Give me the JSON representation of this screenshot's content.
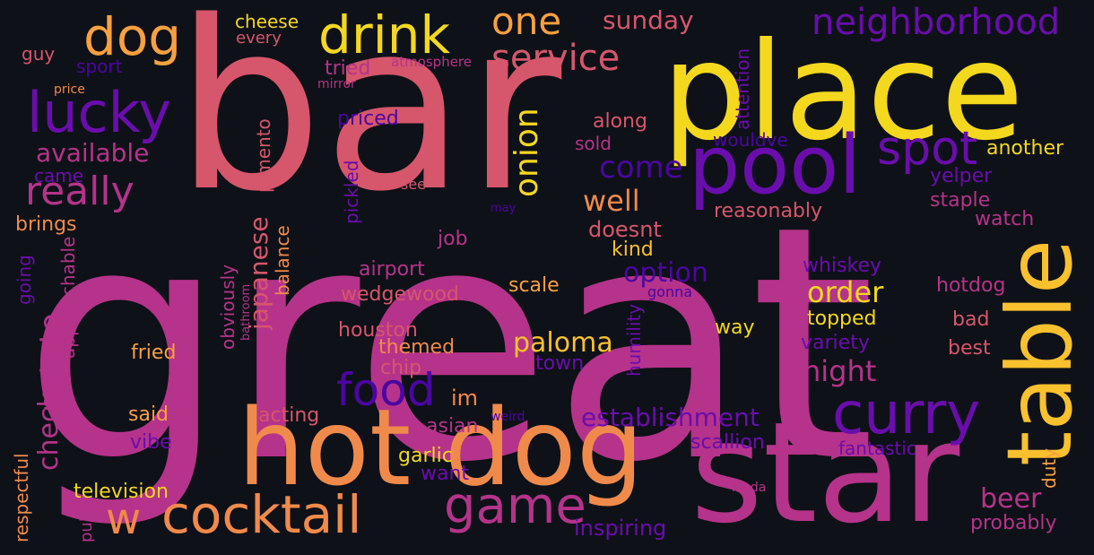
{
  "colors": {
    "background": "#0e1117",
    "pink": "#d6566c",
    "magenta": "#b5338a",
    "purple": "#6a0dad",
    "violet": "#4b06a2",
    "yellow": "#f4d81e",
    "orange": "#f9a03f",
    "salmon": "#e8825a"
  },
  "words": [
    {
      "text": "great",
      "color": "#b5338a"
    },
    {
      "text": "bar",
      "color": "#d6566c"
    },
    {
      "text": "place",
      "color": "#f4d81e"
    },
    {
      "text": "star",
      "color": "#b5338a"
    },
    {
      "text": "hot dog",
      "color": "#f08a4b"
    },
    {
      "text": "table",
      "color": "#f9c12e"
    },
    {
      "text": "pool",
      "color": "#6a0dad"
    },
    {
      "text": "curry",
      "color": "#6a0dad"
    },
    {
      "text": "drink",
      "color": "#f4d81e"
    },
    {
      "text": "dog",
      "color": "#f9a03f"
    },
    {
      "text": "lucky",
      "color": "#6a0dad"
    },
    {
      "text": "cocktail",
      "color": "#f08a4b"
    },
    {
      "text": "game",
      "color": "#b5338a"
    },
    {
      "text": "food",
      "color": "#4b06a2"
    },
    {
      "text": "neighborhood",
      "color": "#6a0dad"
    },
    {
      "text": "one",
      "color": "#f9a03f"
    },
    {
      "text": "service",
      "color": "#d6566c"
    },
    {
      "text": "really",
      "color": "#b5338a"
    },
    {
      "text": "spot",
      "color": "#6a0dad"
    },
    {
      "text": "w",
      "color": "#f08a4b"
    },
    {
      "text": "onion",
      "color": "#f4d81e"
    },
    {
      "text": "potato",
      "color": "#b5338a"
    },
    {
      "text": "japanese",
      "color": "#d6566c"
    },
    {
      "text": "paloma",
      "color": "#f9c12e"
    },
    {
      "text": "establishment",
      "color": "#6a0dad"
    },
    {
      "text": "come",
      "color": "#4b06a2"
    },
    {
      "text": "order",
      "color": "#f4d81e"
    },
    {
      "text": "night",
      "color": "#b5338a"
    },
    {
      "text": "option",
      "color": "#4b06a2"
    },
    {
      "text": "well",
      "color": "#f08a4b"
    },
    {
      "text": "beer",
      "color": "#b5338a"
    },
    {
      "text": "sunday",
      "color": "#d6566c"
    },
    {
      "text": "available",
      "color": "#b5338a"
    },
    {
      "text": "check",
      "color": "#b5338a"
    },
    {
      "text": "cheese",
      "color": "#f4d81e"
    },
    {
      "text": "every",
      "color": "#d6566c"
    },
    {
      "text": "tried",
      "color": "#b5338a"
    },
    {
      "text": "atmosphere",
      "color": "#b5338a"
    },
    {
      "text": "mirror",
      "color": "#b5338a"
    },
    {
      "text": "sport",
      "color": "#4b06a2"
    },
    {
      "text": "guy",
      "color": "#d6566c"
    },
    {
      "text": "price",
      "color": "#f08a4b"
    },
    {
      "text": "priced",
      "color": "#4b06a2"
    },
    {
      "text": "pimento",
      "color": "#d6566c"
    },
    {
      "text": "pickled",
      "color": "#6a0dad"
    },
    {
      "text": "along",
      "color": "#d6566c"
    },
    {
      "text": "sold",
      "color": "#b5338a"
    },
    {
      "text": "attention",
      "color": "#6a0dad"
    },
    {
      "text": "wouldve",
      "color": "#4b06a2"
    },
    {
      "text": "another",
      "color": "#f4d81e"
    },
    {
      "text": "yelper",
      "color": "#6a0dad"
    },
    {
      "text": "staple",
      "color": "#b5338a"
    },
    {
      "text": "reasonably",
      "color": "#d6566c"
    },
    {
      "text": "watch",
      "color": "#b5338a"
    },
    {
      "text": "came",
      "color": "#6a0dad"
    },
    {
      "text": "see",
      "color": "#d6566c"
    },
    {
      "text": "may",
      "color": "#4b06a2"
    },
    {
      "text": "brings",
      "color": "#f08a4b"
    },
    {
      "text": "doesnt",
      "color": "#d6566c"
    },
    {
      "text": "job",
      "color": "#b5338a"
    },
    {
      "text": "kind",
      "color": "#f9c12e"
    },
    {
      "text": "whiskey",
      "color": "#6a0dad"
    },
    {
      "text": "going",
      "color": "#6a0dad"
    },
    {
      "text": "approachable",
      "color": "#b5338a"
    },
    {
      "text": "airport",
      "color": "#b5338a"
    },
    {
      "text": "obviously",
      "color": "#b5338a"
    },
    {
      "text": "balance",
      "color": "#f08a4b"
    },
    {
      "text": "wedgewood",
      "color": "#d6566c"
    },
    {
      "text": "scale",
      "color": "#f9a03f"
    },
    {
      "text": "gonna",
      "color": "#4b06a2"
    },
    {
      "text": "hotdog",
      "color": "#b5338a"
    },
    {
      "text": "topped",
      "color": "#f4d81e"
    },
    {
      "text": "bad",
      "color": "#d6566c"
    },
    {
      "text": "bathroom",
      "color": "#b5338a"
    },
    {
      "text": "houston",
      "color": "#d6566c"
    },
    {
      "text": "themed",
      "color": "#f08a4b"
    },
    {
      "text": "humility",
      "color": "#6a0dad"
    },
    {
      "text": "way",
      "color": "#f4d81e"
    },
    {
      "text": "variety",
      "color": "#6a0dad"
    },
    {
      "text": "best",
      "color": "#d6566c"
    },
    {
      "text": "fried",
      "color": "#f9a03f"
    },
    {
      "text": "chip",
      "color": "#d6566c"
    },
    {
      "text": "town",
      "color": "#6a0dad"
    },
    {
      "text": "im",
      "color": "#f08a4b"
    },
    {
      "text": "said",
      "color": "#f9a03f"
    },
    {
      "text": "acting",
      "color": "#d6566c"
    },
    {
      "text": "weird",
      "color": "#4b06a2"
    },
    {
      "text": "asian",
      "color": "#b5338a"
    },
    {
      "text": "scallion",
      "color": "#6a0dad"
    },
    {
      "text": "duty",
      "color": "#f9a03f"
    },
    {
      "text": "fantastic",
      "color": "#6a0dad"
    },
    {
      "text": "vibe",
      "color": "#6a0dad"
    },
    {
      "text": "garlic",
      "color": "#f4d81e"
    },
    {
      "text": "want",
      "color": "#6a0dad"
    },
    {
      "text": "respectful",
      "color": "#f08a4b"
    },
    {
      "text": "television",
      "color": "#f4d81e"
    },
    {
      "text": "pub",
      "color": "#b5338a"
    },
    {
      "text": "inspiring",
      "color": "#6a0dad"
    },
    {
      "text": "kinda",
      "color": "#b5338a"
    },
    {
      "text": "probably",
      "color": "#b5338a"
    }
  ]
}
